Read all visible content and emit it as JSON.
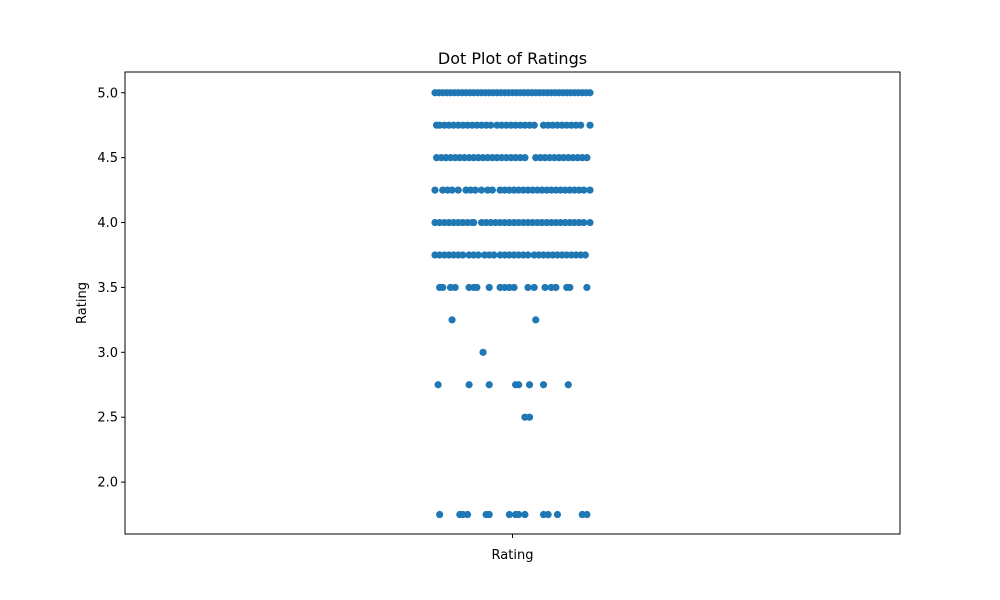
{
  "chart_data": {
    "type": "scatter",
    "title": "Dot Plot of Ratings",
    "xlabel": "",
    "ylabel": "Rating",
    "x_categories": [
      "Rating"
    ],
    "ylim": [
      1.6,
      5.16
    ],
    "xlim": [
      -0.5,
      0.5
    ],
    "yticks": [
      2.0,
      2.5,
      3.0,
      3.5,
      4.0,
      4.5,
      5.0
    ],
    "ytick_labels": [
      "2.0",
      "2.5",
      "3.0",
      "3.5",
      "4.0",
      "4.5",
      "5.0"
    ],
    "grid": false,
    "marker_color": "#1f77b4",
    "series": [
      {
        "category": "Rating",
        "points": [
          {
            "y": 5.0,
            "x": [
              -0.1,
              -0.095,
              -0.09,
              -0.085,
              -0.08,
              -0.075,
              -0.07,
              -0.065,
              -0.06,
              -0.055,
              -0.05,
              -0.045,
              -0.04,
              -0.035,
              -0.03,
              -0.025,
              -0.02,
              -0.015,
              -0.01,
              -0.005,
              0.0,
              0.005,
              0.01,
              0.015,
              0.02,
              0.025,
              0.03,
              0.035,
              0.04,
              0.045,
              0.05,
              0.055,
              0.06,
              0.065,
              0.07,
              0.075,
              0.08,
              0.085,
              0.09,
              0.095,
              0.1
            ]
          },
          {
            "y": 4.75,
            "x": [
              -0.098,
              -0.094,
              -0.088,
              -0.082,
              -0.076,
              -0.07,
              -0.064,
              -0.058,
              -0.052,
              -0.046,
              -0.04,
              -0.034,
              -0.028,
              -0.02,
              -0.014,
              -0.008,
              -0.002,
              0.004,
              0.01,
              0.016,
              0.022,
              0.028,
              0.04,
              0.046,
              0.052,
              0.058,
              0.064,
              0.07,
              0.076,
              0.082,
              0.088,
              0.1
            ]
          },
          {
            "y": 4.5,
            "x": [
              -0.098,
              -0.092,
              -0.086,
              -0.08,
              -0.074,
              -0.068,
              -0.062,
              -0.056,
              -0.05,
              -0.044,
              -0.038,
              -0.032,
              -0.026,
              -0.02,
              -0.014,
              -0.008,
              -0.002,
              0.004,
              0.01,
              0.016,
              0.03,
              0.036,
              0.042,
              0.048,
              0.054,
              0.06,
              0.066,
              0.072,
              0.078,
              0.084,
              0.09,
              0.096
            ]
          },
          {
            "y": 4.25,
            "x": [
              -0.1,
              -0.09,
              -0.084,
              -0.078,
              -0.07,
              -0.06,
              -0.054,
              -0.048,
              -0.04,
              -0.032,
              -0.026,
              -0.016,
              -0.01,
              -0.004,
              0.002,
              0.008,
              0.014,
              0.02,
              0.026,
              0.032,
              0.038,
              0.044,
              0.05,
              0.056,
              0.062,
              0.068,
              0.074,
              0.08,
              0.086,
              0.092,
              0.1
            ]
          },
          {
            "y": 4.0,
            "x": [
              -0.1,
              -0.094,
              -0.088,
              -0.082,
              -0.076,
              -0.07,
              -0.064,
              -0.058,
              -0.052,
              -0.05,
              -0.04,
              -0.034,
              -0.028,
              -0.022,
              -0.016,
              -0.01,
              -0.004,
              0.002,
              0.008,
              0.014,
              0.02,
              0.026,
              0.032,
              0.038,
              0.044,
              0.05,
              0.056,
              0.062,
              0.068,
              0.074,
              0.08,
              0.086,
              0.092,
              0.1
            ]
          },
          {
            "y": 3.75,
            "x": [
              -0.1,
              -0.094,
              -0.088,
              -0.082,
              -0.076,
              -0.07,
              -0.064,
              -0.056,
              -0.05,
              -0.044,
              -0.036,
              -0.03,
              -0.024,
              -0.016,
              -0.01,
              -0.004,
              0.002,
              0.008,
              0.014,
              0.02,
              0.028,
              0.034,
              0.04,
              0.046,
              0.052,
              0.058,
              0.064,
              0.07,
              0.076,
              0.082,
              0.088,
              0.094
            ]
          },
          {
            "y": 3.5,
            "x": [
              -0.094,
              -0.09,
              -0.08,
              -0.074,
              -0.056,
              -0.05,
              -0.046,
              -0.03,
              -0.016,
              -0.01,
              -0.004,
              0.002,
              0.02,
              0.028,
              0.042,
              0.05,
              0.056,
              0.07,
              0.074,
              0.096
            ]
          },
          {
            "y": 3.25,
            "x": [
              -0.078,
              0.03
            ]
          },
          {
            "y": 3.0,
            "x": [
              -0.038
            ]
          },
          {
            "y": 2.75,
            "x": [
              -0.096,
              -0.056,
              -0.03,
              0.004,
              0.008,
              0.022,
              0.04,
              0.072
            ]
          },
          {
            "y": 2.5,
            "x": [
              0.016,
              0.022
            ]
          },
          {
            "y": 1.75,
            "x": [
              -0.094,
              -0.068,
              -0.064,
              -0.058,
              -0.034,
              -0.03,
              -0.004,
              0.004,
              0.008,
              0.016,
              0.04,
              0.046,
              0.058,
              0.09,
              0.096
            ]
          }
        ]
      }
    ]
  }
}
